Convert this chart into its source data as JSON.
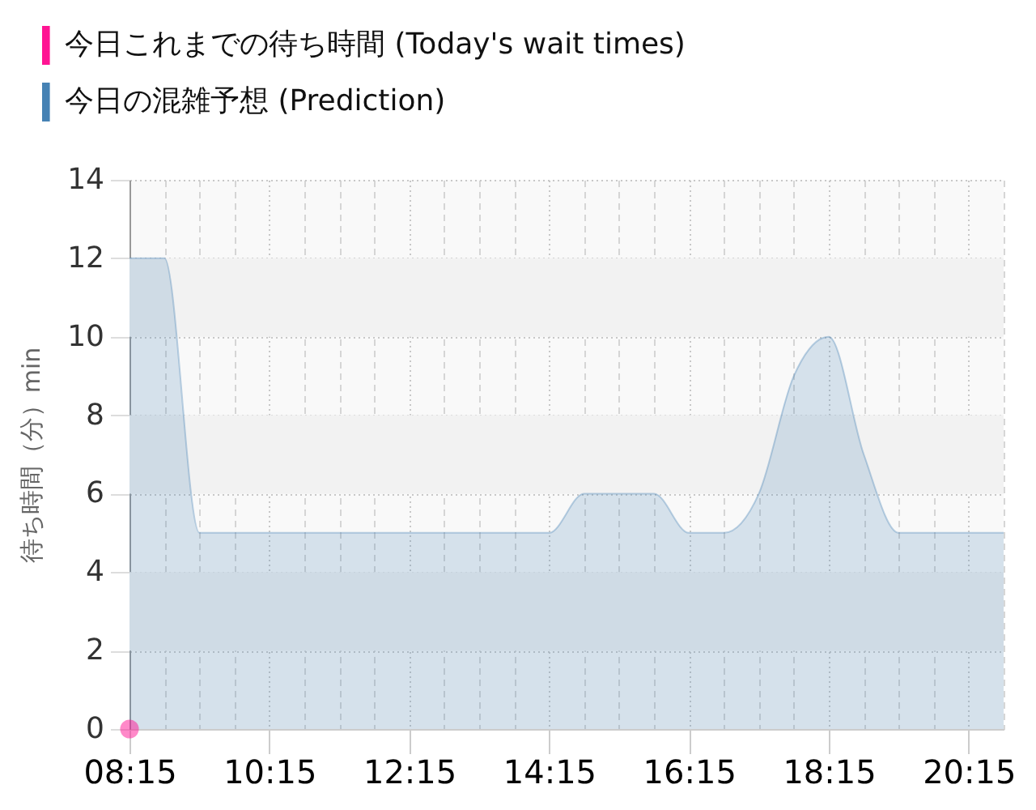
{
  "chart_data": {
    "type": "area",
    "ylabel": "待ち時間（分）min",
    "series": [
      {
        "name": "今日これまでの待ち時間 (Today's wait times)",
        "type": "scatter",
        "color": "#ff1493",
        "x": [
          8.25
        ],
        "values": [
          0
        ]
      },
      {
        "name": "今日の混雑予想 (Prediction)",
        "color": "#4682b4",
        "x": [
          8.25,
          8.75,
          9.25,
          9.75,
          10.25,
          10.75,
          11.25,
          11.75,
          12.25,
          12.75,
          13.25,
          13.75,
          14.25,
          14.75,
          15.25,
          15.75,
          16.25,
          16.75,
          17.25,
          17.75,
          18.25,
          18.75,
          19.25,
          19.75,
          20.25,
          20.75
        ],
        "values": [
          12,
          12,
          5,
          5,
          5,
          5,
          5,
          5,
          5,
          5,
          5,
          5,
          5,
          6,
          6,
          6,
          5,
          5,
          6,
          9,
          10,
          7,
          5,
          5,
          5,
          5
        ]
      }
    ],
    "xlim": [
      8.25,
      20.75
    ],
    "xticks": [
      {
        "value": 8.25,
        "label": "08:15"
      },
      {
        "value": 8.75,
        "label": null
      },
      {
        "value": 9.25,
        "label": null
      },
      {
        "value": 9.75,
        "label": null
      },
      {
        "value": 10.25,
        "label": "10:15"
      },
      {
        "value": 10.75,
        "label": null
      },
      {
        "value": 11.25,
        "label": null
      },
      {
        "value": 11.75,
        "label": null
      },
      {
        "value": 12.25,
        "label": "12:15"
      },
      {
        "value": 12.75,
        "label": null
      },
      {
        "value": 13.25,
        "label": null
      },
      {
        "value": 13.75,
        "label": null
      },
      {
        "value": 14.25,
        "label": "14:15"
      },
      {
        "value": 14.75,
        "label": null
      },
      {
        "value": 15.25,
        "label": null
      },
      {
        "value": 15.75,
        "label": null
      },
      {
        "value": 16.25,
        "label": "16:15"
      },
      {
        "value": 16.75,
        "label": null
      },
      {
        "value": 17.25,
        "label": null
      },
      {
        "value": 17.75,
        "label": null
      },
      {
        "value": 18.25,
        "label": "18:15"
      },
      {
        "value": 18.75,
        "label": null
      },
      {
        "value": 19.25,
        "label": null
      },
      {
        "value": 19.75,
        "label": null
      },
      {
        "value": 20.25,
        "label": "20:15"
      },
      {
        "value": 20.75,
        "label": null
      }
    ],
    "ylim": [
      0,
      14
    ],
    "yticks": [
      0,
      2,
      4,
      6,
      8,
      10,
      12,
      14
    ],
    "bands": [
      {
        "axis": "y",
        "from": 10,
        "to": 12,
        "color": "#f2f2f2"
      },
      {
        "axis": "y",
        "from": 6,
        "to": 8,
        "color": "#f2f2f2"
      },
      {
        "axis": "y",
        "from": 2,
        "to": 4,
        "color": "#f2f2f2"
      }
    ],
    "grid": true,
    "legend": "top left"
  }
}
